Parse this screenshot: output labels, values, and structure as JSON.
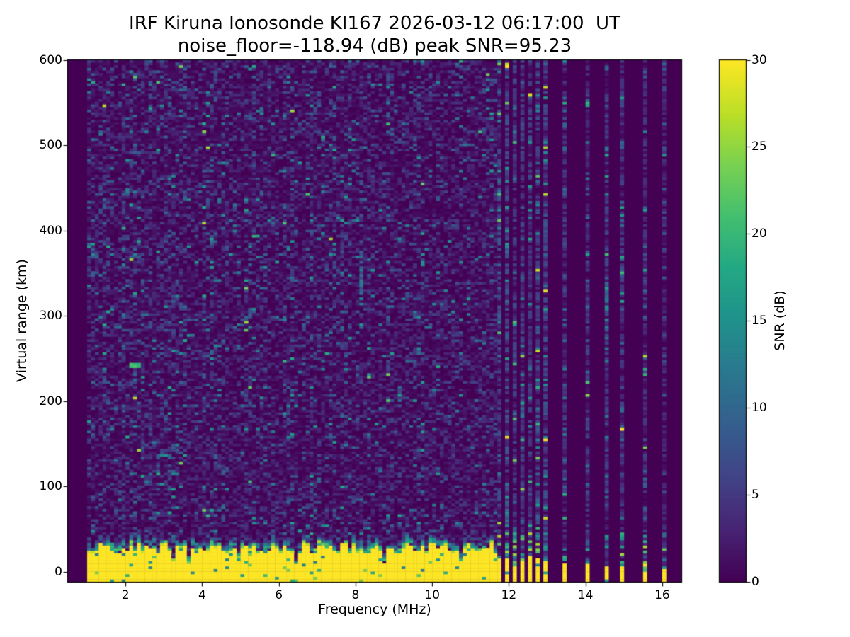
{
  "chart_data": {
    "type": "heatmap",
    "title_line1": "IRF Kiruna Ionosonde KI167 2026-03-12 06:17:00  UT",
    "title_line2": "noise_floor=-118.94 (dB) peak SNR=95.23",
    "station": "IRF Kiruna Ionosonde KI167",
    "timestamp_ut": "2026-03-12 06:17:00",
    "noise_floor_db": -118.94,
    "peak_snr_db": 95.23,
    "xlabel": "Frequency (MHz)",
    "ylabel": "Virtual range (km)",
    "colorbar_label": "SNR (dB)",
    "x_range": [
      0.5,
      16.5
    ],
    "y_range": [
      -12,
      600
    ],
    "color_range": [
      0,
      30
    ],
    "x_ticks": [
      2,
      4,
      6,
      8,
      10,
      12,
      14,
      16
    ],
    "y_ticks": [
      0,
      100,
      200,
      300,
      400,
      500,
      600
    ],
    "colorbar_ticks": [
      0,
      5,
      10,
      15,
      20,
      25,
      30
    ],
    "colormap": "viridis",
    "viridis_stops": [
      "#440154",
      "#482475",
      "#414487",
      "#355f8d",
      "#2a788e",
      "#21918c",
      "#22a884",
      "#44bf70",
      "#7ad151",
      "#bddf26",
      "#fde725"
    ],
    "grid": false,
    "legend_position": "colorbar-right",
    "content": {
      "sweep_start_mhz": 1.0,
      "continuous_sweep_end_mhz": 11.65,
      "discrete_freqs_mhz": [
        11.75,
        11.95,
        12.15,
        12.35,
        12.55,
        12.75,
        12.95,
        13.45,
        14.0,
        14.5,
        14.95,
        15.5,
        16.0
      ],
      "ground_echo_band": {
        "snr_db": 30,
        "top_km_typical": [
          20,
          33
        ],
        "notch_top_km": [
          5,
          14
        ],
        "transition_thickness_km": [
          7,
          18
        ],
        "note": "saturated yellow band from bottom of plot with jagged green speckled upper edge and occasional deep dark notches"
      },
      "discrete_stripe_band": {
        "group1_top_km": [
          9,
          20
        ],
        "sparse_top_km": [
          4,
          11
        ],
        "speckle_up_to_km": 46
      },
      "background_noise_snr_db": [
        0,
        9
      ],
      "bright_echo": {
        "freq_mhz": 2.25,
        "range_km": 243,
        "snr_db": 19
      },
      "faint_trace": {
        "from_mhz_km": [
          4.25,
          258
        ],
        "to_mhz_km": [
          5.4,
          308
        ],
        "snr_db": 10
      },
      "noise_streaks": [
        {
          "freq_mhz": 8.15,
          "range_km": [
            313,
            376
          ]
        },
        {
          "freq_mhz": 14.55,
          "range_km": [
            272,
            346
          ]
        }
      ]
    }
  }
}
